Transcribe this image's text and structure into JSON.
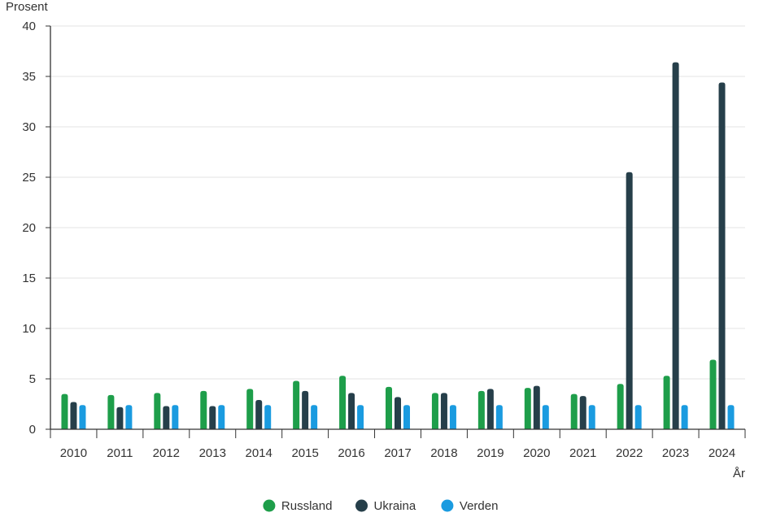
{
  "chart_data": {
    "type": "bar",
    "ylabel": "Prosent",
    "xlabel": "År",
    "ylim": [
      0,
      40
    ],
    "yticks": [
      0,
      5,
      10,
      15,
      20,
      25,
      30,
      35,
      40
    ],
    "grid": true,
    "legend_placement": "bottom-center",
    "categories": [
      "2010",
      "2011",
      "2012",
      "2013",
      "2014",
      "2015",
      "2016",
      "2017",
      "2018",
      "2019",
      "2020",
      "2021",
      "2022",
      "2023",
      "2024"
    ],
    "series": [
      {
        "name": "Russland",
        "color": "#1e9e4a",
        "values": [
          3.5,
          3.4,
          3.6,
          3.8,
          4.0,
          4.8,
          5.3,
          4.2,
          3.6,
          3.8,
          4.1,
          3.5,
          4.5,
          5.3,
          6.9
        ]
      },
      {
        "name": "Ukraina",
        "color": "#263f4a",
        "values": [
          2.7,
          2.2,
          2.3,
          2.3,
          2.9,
          3.8,
          3.6,
          3.2,
          3.6,
          4.0,
          4.3,
          3.3,
          25.5,
          36.4,
          34.4
        ]
      },
      {
        "name": "Verden",
        "color": "#1a9be0",
        "values": [
          2.4,
          2.4,
          2.4,
          2.4,
          2.4,
          2.4,
          2.4,
          2.4,
          2.4,
          2.4,
          2.4,
          2.4,
          2.4,
          2.4,
          2.4
        ]
      }
    ]
  }
}
